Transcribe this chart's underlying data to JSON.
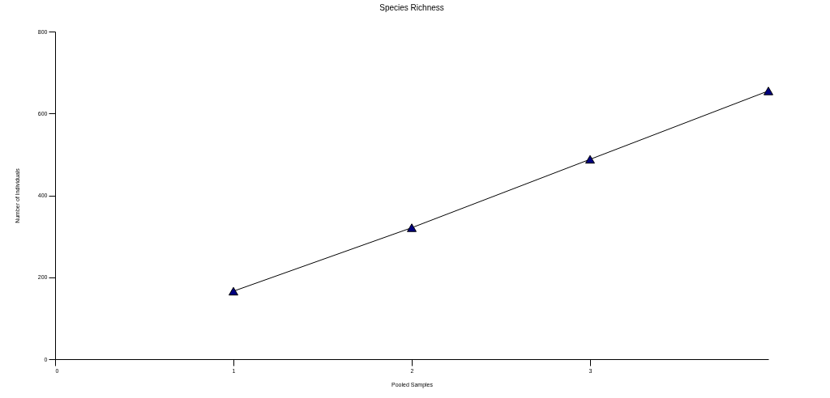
{
  "chart_data": {
    "type": "line",
    "title": "Species Richness",
    "xlabel": "Pooled Samples",
    "ylabel": "Number of Individuals",
    "x": [
      1,
      2,
      3,
      4
    ],
    "series": [
      {
        "color": "#000080",
        "values": [
          166,
          321,
          488,
          655
        ]
      }
    ],
    "xlim": [
      0,
      4
    ],
    "xticks": [
      0,
      1,
      2,
      3
    ],
    "ylim": [
      0,
      800
    ],
    "yticks": [
      0,
      200,
      400,
      600,
      800
    ],
    "marker": "triangle",
    "line_style": "solid",
    "grid": false,
    "legend": false
  }
}
